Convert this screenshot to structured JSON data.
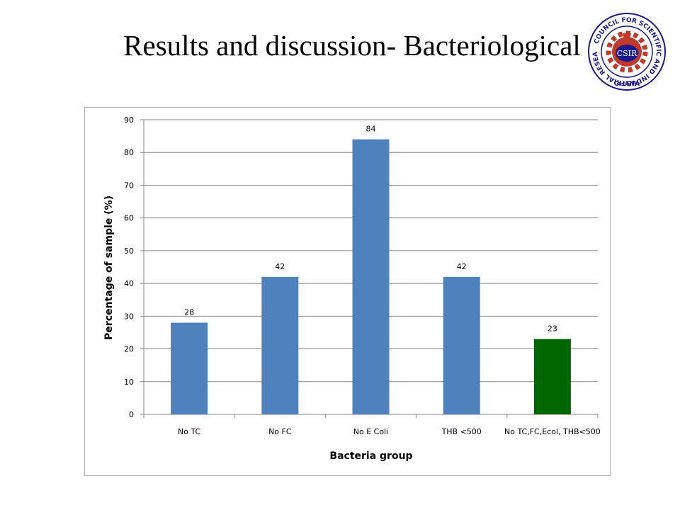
{
  "slide": {
    "title": "Results and discussion- Bacteriological"
  },
  "logo": {
    "center_text": "CSIR",
    "ring_text": "COUNCIL FOR SCIENTIFIC AND INDUSTRIAL RESEARCH",
    "bottom_text": "GHANA"
  },
  "chart_data": {
    "type": "bar",
    "title": "",
    "xlabel": "Bacteria group",
    "ylabel": "Percentage of sample (%)",
    "ylim": [
      0,
      90
    ],
    "yticks": [
      0,
      10,
      20,
      30,
      40,
      50,
      60,
      70,
      80,
      90
    ],
    "grid": true,
    "legend": "none",
    "categories": [
      "No TC",
      "No FC",
      "No E Coli",
      "THB <500",
      "No TC,FC,Ecol, THB<500"
    ],
    "values": [
      28,
      42,
      84,
      42,
      23
    ],
    "data_labels": [
      "28",
      "42",
      "84",
      "42",
      "23"
    ],
    "bar_colors": [
      "#4f81bd",
      "#4f81bd",
      "#4f81bd",
      "#4f81bd",
      "#006600"
    ]
  }
}
